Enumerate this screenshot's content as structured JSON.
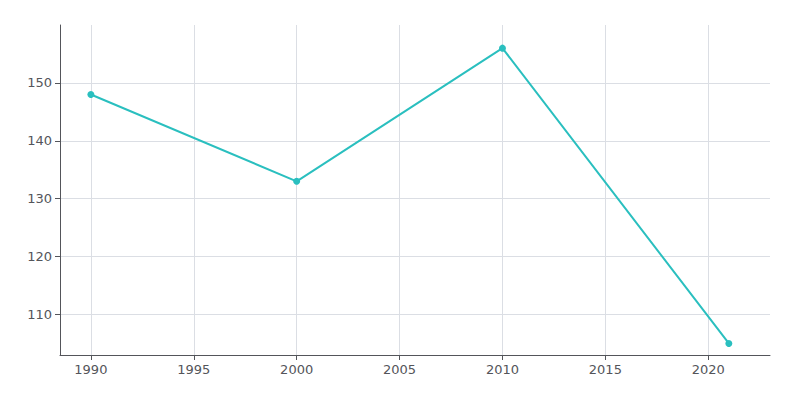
{
  "chart_data": {
    "type": "line",
    "x": [
      1990,
      2000,
      2010,
      2021
    ],
    "values": [
      148,
      133,
      156,
      105
    ],
    "color": "#2abfbf",
    "marker": "circle",
    "xlim": [
      1988.5,
      2023
    ],
    "ylim": [
      103,
      160
    ],
    "xticks": [
      1990,
      1995,
      2000,
      2005,
      2010,
      2015,
      2020
    ],
    "yticks": [
      110,
      120,
      130,
      140,
      150
    ],
    "grid": true
  }
}
